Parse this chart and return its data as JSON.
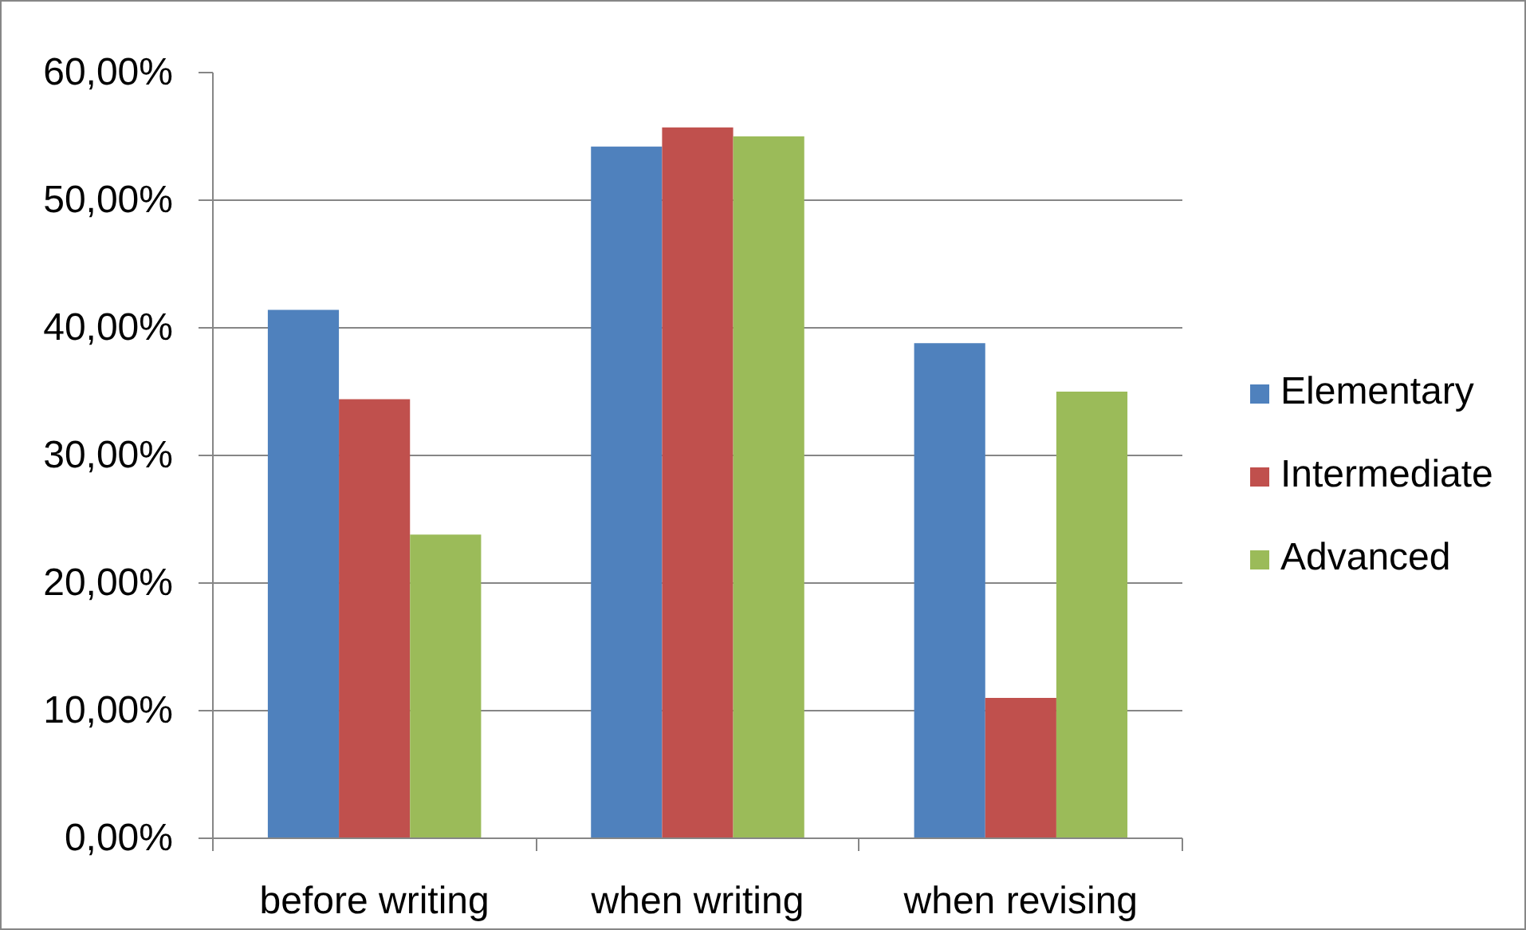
{
  "chart_data": {
    "type": "bar",
    "categories": [
      "before writing",
      "when writing",
      "when revising"
    ],
    "series": [
      {
        "name": "Elementary",
        "color": "#4f81bd",
        "values": [
          41.4,
          54.2,
          38.8
        ]
      },
      {
        "name": "Intermediate",
        "color": "#c0504d",
        "values": [
          34.4,
          55.7,
          11.0
        ]
      },
      {
        "name": "Advanced",
        "color": "#9bbb59",
        "values": [
          23.8,
          55.0,
          35.0
        ]
      }
    ],
    "ylim": [
      0,
      60
    ],
    "yticks": [
      {
        "value": 0,
        "label": "0,00%"
      },
      {
        "value": 10,
        "label": "10,00%"
      },
      {
        "value": 20,
        "label": "20,00%"
      },
      {
        "value": 30,
        "label": "30,00%"
      },
      {
        "value": 40,
        "label": "40,00%"
      },
      {
        "value": 50,
        "label": "50,00%"
      },
      {
        "value": 60,
        "label": "60,00%"
      }
    ],
    "grid": "y",
    "legend": "right"
  }
}
